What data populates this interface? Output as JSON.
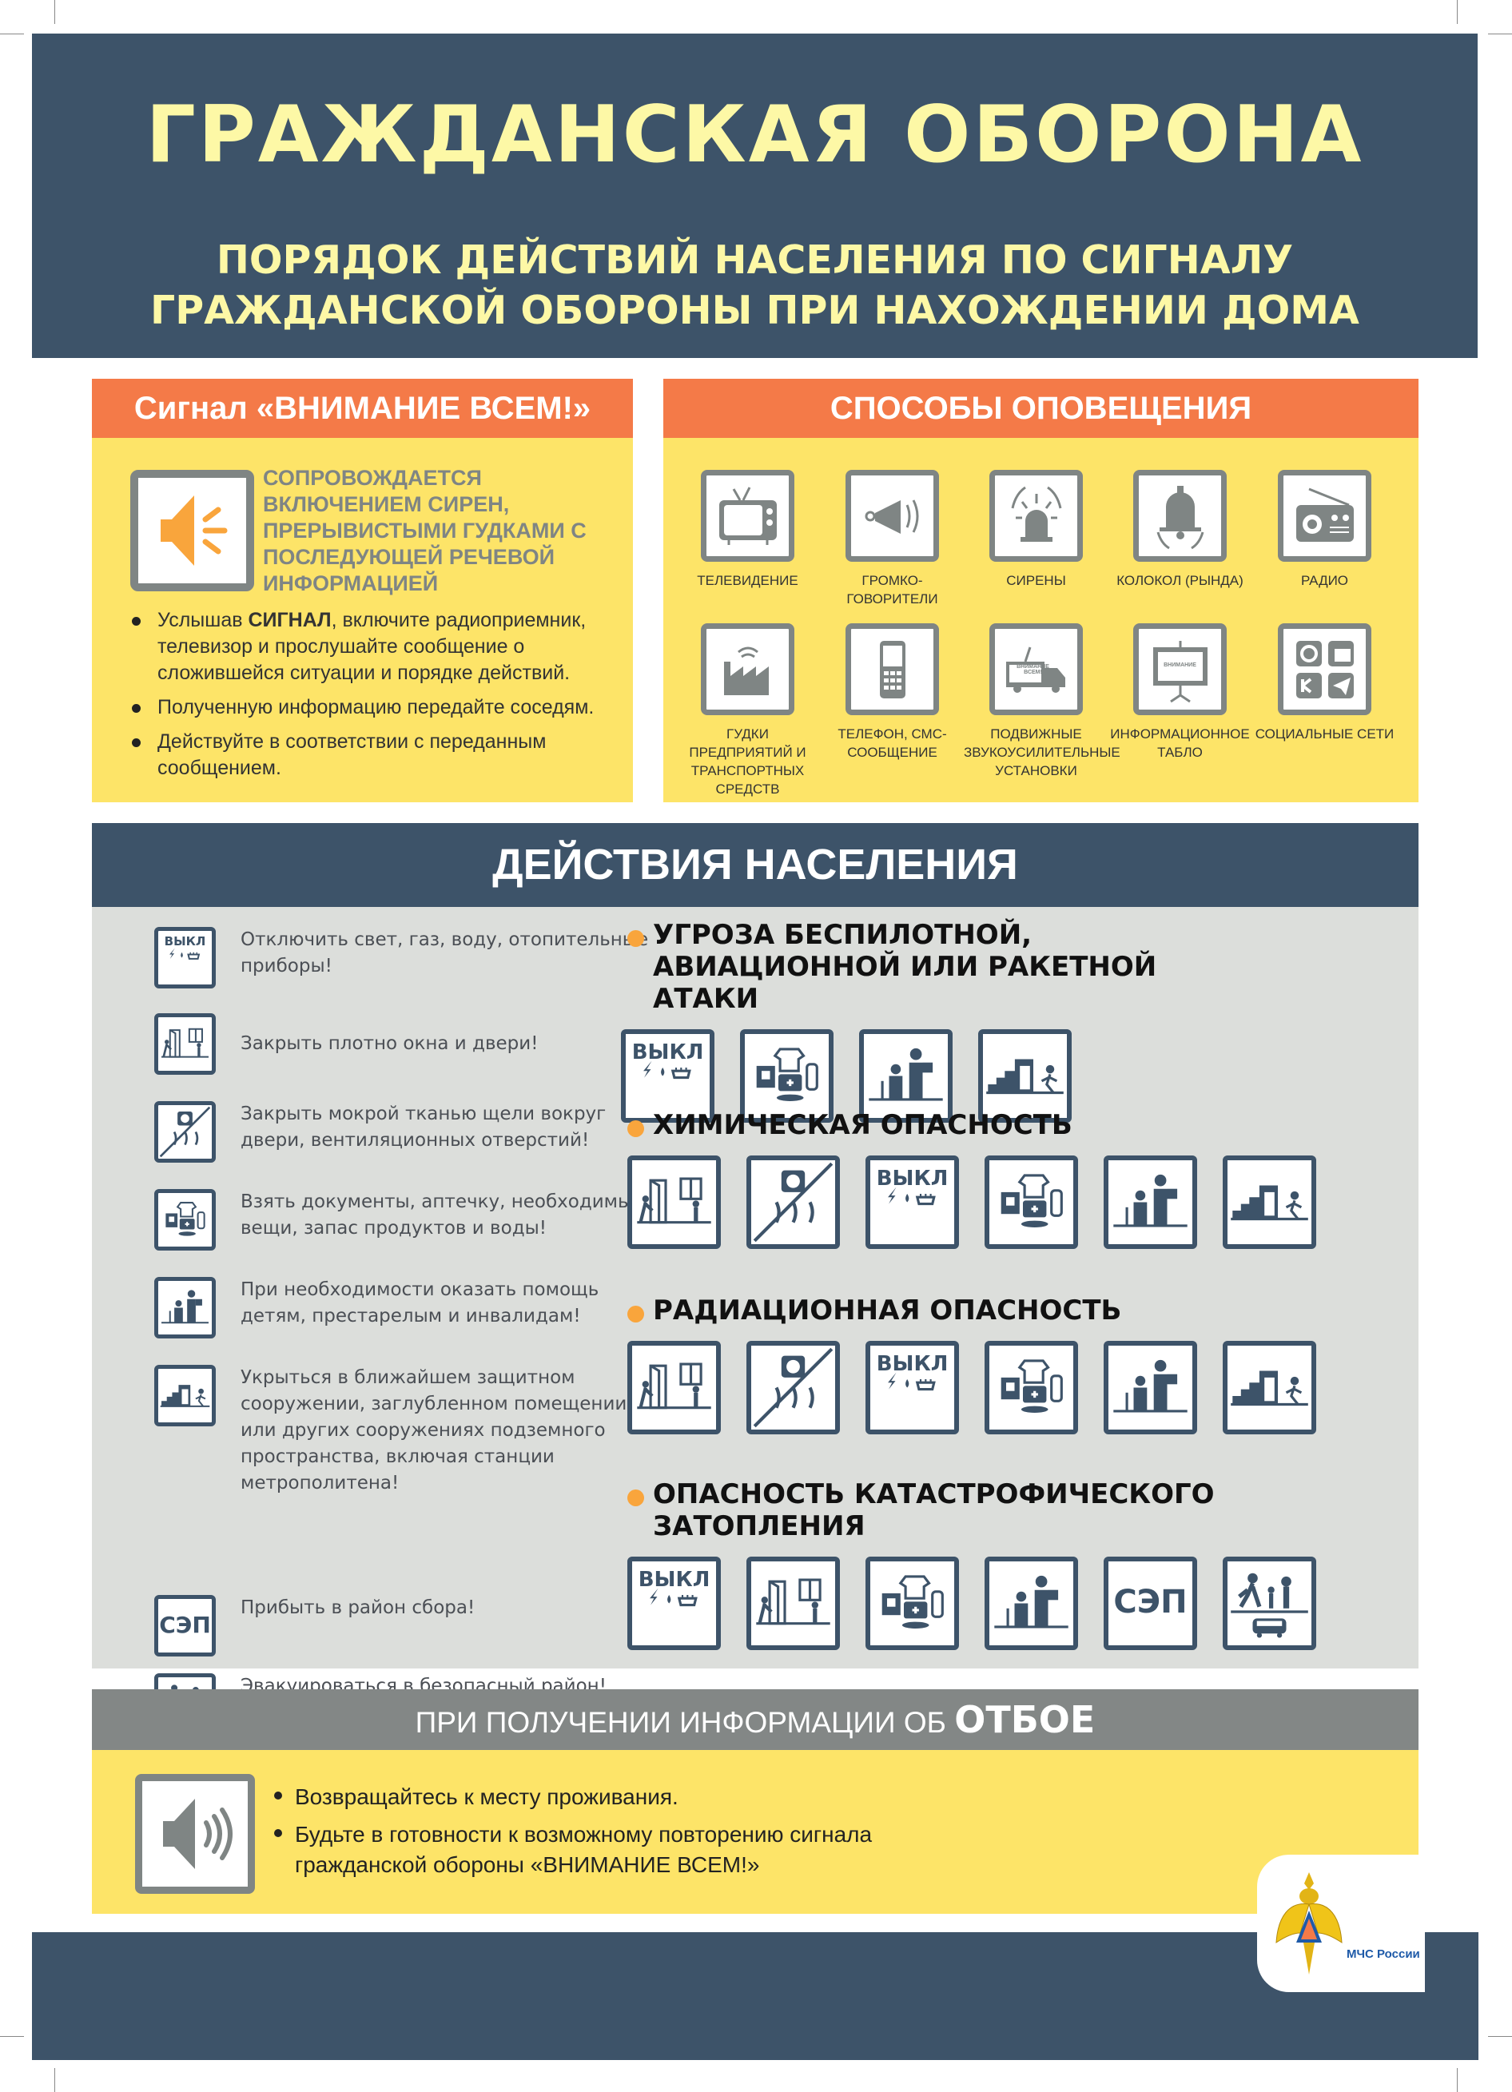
{
  "header": {
    "title": "ГРАЖДАНСКАЯ ОБОРОНА",
    "subtitle_line1": "ПОРЯДОК ДЕЙСТВИЙ НАСЕЛЕНИЯ ПО СИГНАЛУ",
    "subtitle_line2": "ГРАЖДАНСКОЙ ОБОРОНЫ ПРИ НАХОЖДЕНИИ ДОМА"
  },
  "colors": {
    "navy": "#3d5369",
    "title_yellow": "#fdf8a6",
    "orange": "#f47a48",
    "yellow": "#fde468",
    "gray_panel": "#dcdedb",
    "gray_header": "#838786",
    "bullet_orange": "#f9a53c"
  },
  "signal": {
    "title": "Сигнал  «ВНИМАНИЕ ВСЕМ!»",
    "icon": "speaker-loud-icon",
    "accompanied": "СОПРОВОЖДАЕТСЯ ВКЛЮЧЕНИЕМ СИРЕН, ПРЕРЫВИСТЫМИ ГУДКАМИ С ПОСЛЕДУЮЩЕЙ РЕЧЕВОЙ ИНФОРМАЦИЕЙ",
    "bullet1_pre": "Услышав ",
    "bullet1_bold": "СИГНАЛ",
    "bullet1_post": ", включите радиоприемник, телевизор и прослушайте сообщение о сложившейся ситуации и порядке действий.",
    "bullet2": "Полученную информацию передайте соседям.",
    "bullet3": "Действуйте в соответствии с переданным сообщением."
  },
  "ways": {
    "title": "СПОСОБЫ ОПОВЕЩЕНИЯ",
    "items": [
      {
        "label": "Телевидение",
        "icon": "tv"
      },
      {
        "label": "Громко-говорители",
        "icon": "loudspeaker"
      },
      {
        "label": "Сирены",
        "icon": "siren"
      },
      {
        "label": "Колокол (рында)",
        "icon": "bell"
      },
      {
        "label": "Радио",
        "icon": "radio"
      },
      {
        "label": "Гудки предприятий и транспортных средств",
        "icon": "factory"
      },
      {
        "label": "Телефон, СМС-сообщение",
        "icon": "phone"
      },
      {
        "label": "Подвижные звукоусилительные установки",
        "icon": "truck",
        "sign": "ВНИМАНИЕ ВСЕМ!"
      },
      {
        "label": "Информационное табло",
        "icon": "board",
        "sign": "ВНИМАНИЕ"
      },
      {
        "label": "Социальные сети",
        "icon": "social"
      }
    ]
  },
  "actions": {
    "title": "ДЕЙСТВИЯ НАСЕЛЕНИЯ",
    "off_label": "ВЫКЛ",
    "sep_label": "СЭП",
    "items": [
      {
        "icon": "off",
        "text": "Отключить свет, газ, воду, отопительные приборы!"
      },
      {
        "icon": "doors",
        "text": "Закрыть плотно окна и двери!"
      },
      {
        "icon": "seal",
        "text": "Закрыть мокрой тканью щели вокруг двери, вентиляционных отверстий!"
      },
      {
        "icon": "kit",
        "text": "Взять документы, аптечку, необходимые вещи, запас продуктов и воды!"
      },
      {
        "icon": "help",
        "text": "При необходимости оказать помощь детям, престарелым и инвалидам!"
      },
      {
        "icon": "shelter",
        "text": "Укрыться в ближайшем защитном сооружении, заглубленном помещении или других сооружениях подземного пространства, включая станции метрополитена!"
      },
      {
        "icon": "sep",
        "text": "Прибыть в район сбора!"
      },
      {
        "icon": "evac",
        "text": "Эвакуироваться в безопасный район!"
      }
    ],
    "threats": [
      {
        "title": "УГРОЗА БЕСПИЛОТНОЙ, АВИАЦИОННОЙ ИЛИ РАКЕТНОЙ АТАКИ",
        "icons": [
          "off",
          "kit",
          "help",
          "shelter"
        ]
      },
      {
        "title": "ХИМИЧЕСКАЯ ОПАСНОСТЬ",
        "icons": [
          "doors",
          "seal",
          "off",
          "kit",
          "help",
          "shelter"
        ]
      },
      {
        "title": "РАДИАЦИОННАЯ ОПАСНОСТЬ",
        "icons": [
          "doors",
          "seal",
          "off",
          "kit",
          "help",
          "shelter"
        ]
      },
      {
        "title": "ОПАСНОСТЬ КАТАСТРОФИЧЕСКОГО ЗАТОПЛЕНИЯ",
        "icons": [
          "off",
          "doors",
          "kit",
          "help",
          "sep",
          "evac"
        ]
      }
    ]
  },
  "otboy": {
    "title_pre": "ПРИ ПОЛУЧЕНИИ ИНФОРМАЦИИ ОБ ",
    "title_bold": "ОТБОЕ",
    "icon": "speaker-quiet-icon",
    "bullet1": "Возвращайтесь к месту проживания.",
    "bullet2": "Будьте в готовности к возможному повторению сигнала гражданской обороны «ВНИМАНИЕ ВСЕМ!»"
  },
  "logo": {
    "text": "МЧС России",
    "icon": "mchs-emblem"
  }
}
